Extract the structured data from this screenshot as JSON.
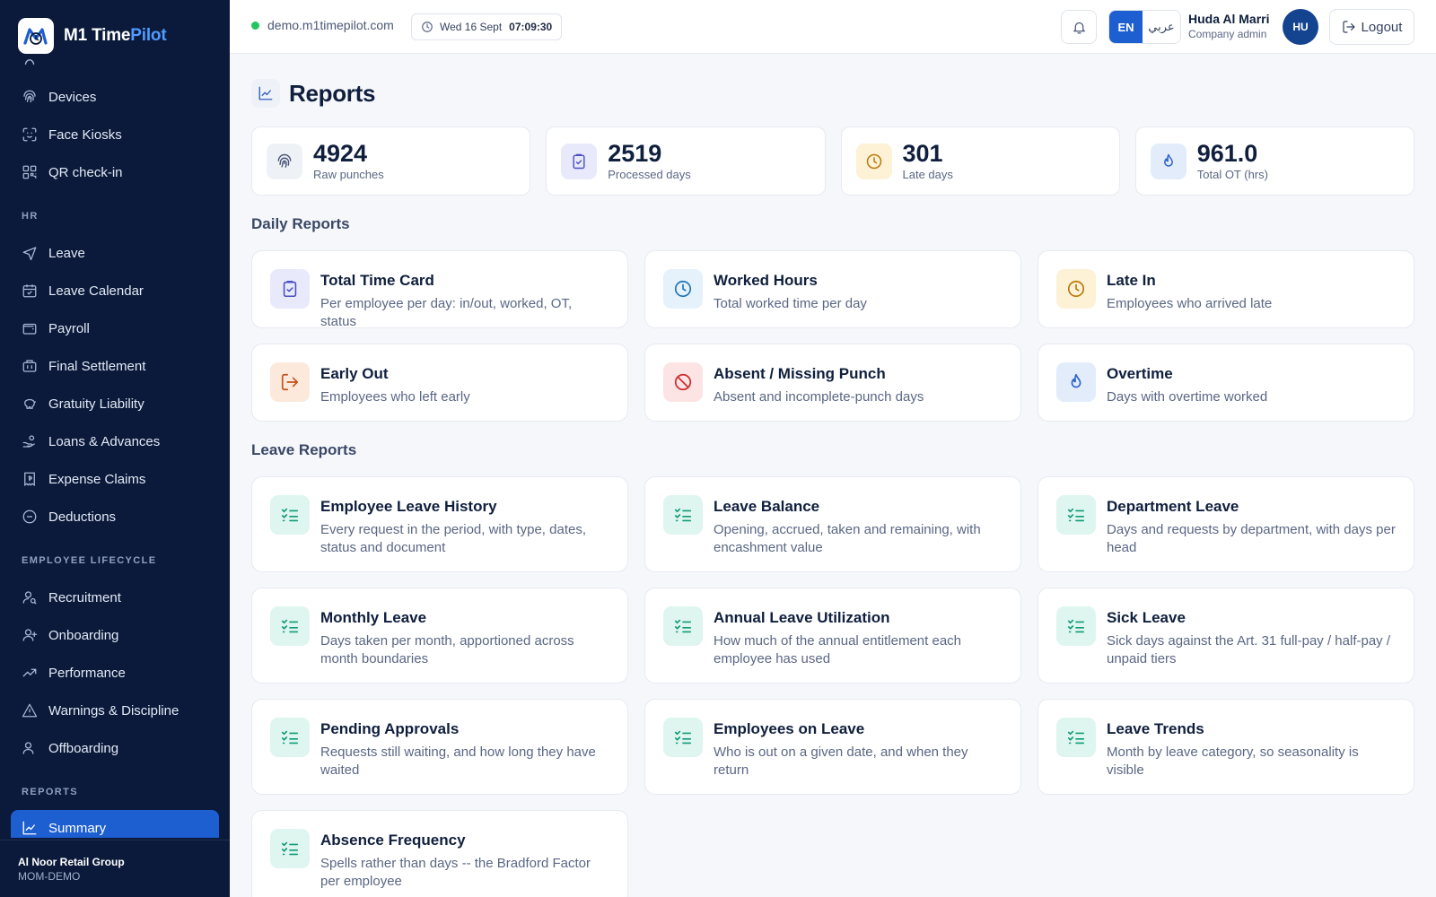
{
  "brand": {
    "name_main": "M1 Time",
    "name_accent": "Pilot"
  },
  "sidebar": {
    "items_top": [
      {
        "label": "Devices",
        "icon": "fingerprint-icon"
      },
      {
        "label": "Face Kiosks",
        "icon": "face-scan-icon"
      },
      {
        "label": "QR check-in",
        "icon": "qr-code-icon"
      }
    ],
    "section_hr": "HR",
    "items_hr": [
      {
        "label": "Leave",
        "icon": "plane-icon"
      },
      {
        "label": "Leave Calendar",
        "icon": "calendar-icon"
      },
      {
        "label": "Payroll",
        "icon": "wallet-icon"
      },
      {
        "label": "Final Settlement",
        "icon": "building-icon"
      },
      {
        "label": "Gratuity Liability",
        "icon": "piggy-bank-icon"
      },
      {
        "label": "Loans & Advances",
        "icon": "hand-coins-icon"
      },
      {
        "label": "Expense Claims",
        "icon": "receipt-icon"
      },
      {
        "label": "Deductions",
        "icon": "minus-circle-icon"
      }
    ],
    "section_lifecycle": "EMPLOYEE LIFECYCLE",
    "items_lifecycle": [
      {
        "label": "Recruitment",
        "icon": "user-search-icon"
      },
      {
        "label": "Onboarding",
        "icon": "user-plus-icon"
      },
      {
        "label": "Performance",
        "icon": "trending-up-icon"
      },
      {
        "label": "Warnings & Discipline",
        "icon": "alert-triangle-icon"
      },
      {
        "label": "Offboarding",
        "icon": "user-minus-icon"
      }
    ],
    "section_reports": "REPORTS",
    "items_reports": [
      {
        "label": "Summary",
        "icon": "chart-line-icon",
        "active": true
      }
    ],
    "footer": {
      "org": "Al Noor Retail Group",
      "code": "MOM-DEMO"
    }
  },
  "header": {
    "domain": "demo.m1timepilot.com",
    "date": "Wed 16 Sept",
    "time": "07:09:30",
    "lang_en": "EN",
    "lang_ar": "عربي",
    "user_name": "Huda Al Marri",
    "user_role": "Company admin",
    "avatar": "HU",
    "logout": "Logout"
  },
  "page": {
    "title": "Reports"
  },
  "stats": [
    {
      "value": "4924",
      "label": "Raw punches",
      "icon": "fingerprint-icon"
    },
    {
      "value": "2519",
      "label": "Processed days",
      "icon": "clipboard-check-icon"
    },
    {
      "value": "301",
      "label": "Late days",
      "icon": "clock-icon"
    },
    {
      "value": "961.0",
      "label": "Total OT (hrs)",
      "icon": "flame-icon"
    }
  ],
  "daily": {
    "title": "Daily Reports",
    "cards": [
      {
        "title": "Total Time Card",
        "desc": "Per employee per day: in/out, worked, OT, status",
        "icon": "clipboard-check-icon"
      },
      {
        "title": "Worked Hours",
        "desc": "Total worked time per day",
        "icon": "clock-icon"
      },
      {
        "title": "Late In",
        "desc": "Employees who arrived late",
        "icon": "clock-icon"
      },
      {
        "title": "Early Out",
        "desc": "Employees who left early",
        "icon": "log-out-icon"
      },
      {
        "title": "Absent / Missing Punch",
        "desc": "Absent and incomplete-punch days",
        "icon": "ban-icon"
      },
      {
        "title": "Overtime",
        "desc": "Days with overtime worked",
        "icon": "flame-icon"
      }
    ]
  },
  "leave": {
    "title": "Leave Reports",
    "cards": [
      {
        "title": "Employee Leave History",
        "desc": "Every request in the period, with type, dates, status and document",
        "icon": "list-checks-icon"
      },
      {
        "title": "Leave Balance",
        "desc": "Opening, accrued, taken and remaining, with encashment value",
        "icon": "list-checks-icon"
      },
      {
        "title": "Department Leave",
        "desc": "Days and requests by department, with days per head",
        "icon": "list-checks-icon"
      },
      {
        "title": "Monthly Leave",
        "desc": "Days taken per month, apportioned across month boundaries",
        "icon": "list-checks-icon"
      },
      {
        "title": "Annual Leave Utilization",
        "desc": "How much of the annual entitlement each employee has used",
        "icon": "list-checks-icon"
      },
      {
        "title": "Sick Leave",
        "desc": "Sick days against the Art. 31 full-pay / half-pay / unpaid tiers",
        "icon": "list-checks-icon"
      },
      {
        "title": "Pending Approvals",
        "desc": "Requests still waiting, and how long they have waited",
        "icon": "list-checks-icon"
      },
      {
        "title": "Employees on Leave",
        "desc": "Who is out on a given date, and when they return",
        "icon": "list-checks-icon"
      },
      {
        "title": "Leave Trends",
        "desc": "Month by leave category, so seasonality is visible",
        "icon": "list-checks-icon"
      },
      {
        "title": "Absence Frequency",
        "desc": "Spells rather than days -- the Bradford Factor per employee",
        "icon": "list-checks-icon"
      }
    ]
  }
}
